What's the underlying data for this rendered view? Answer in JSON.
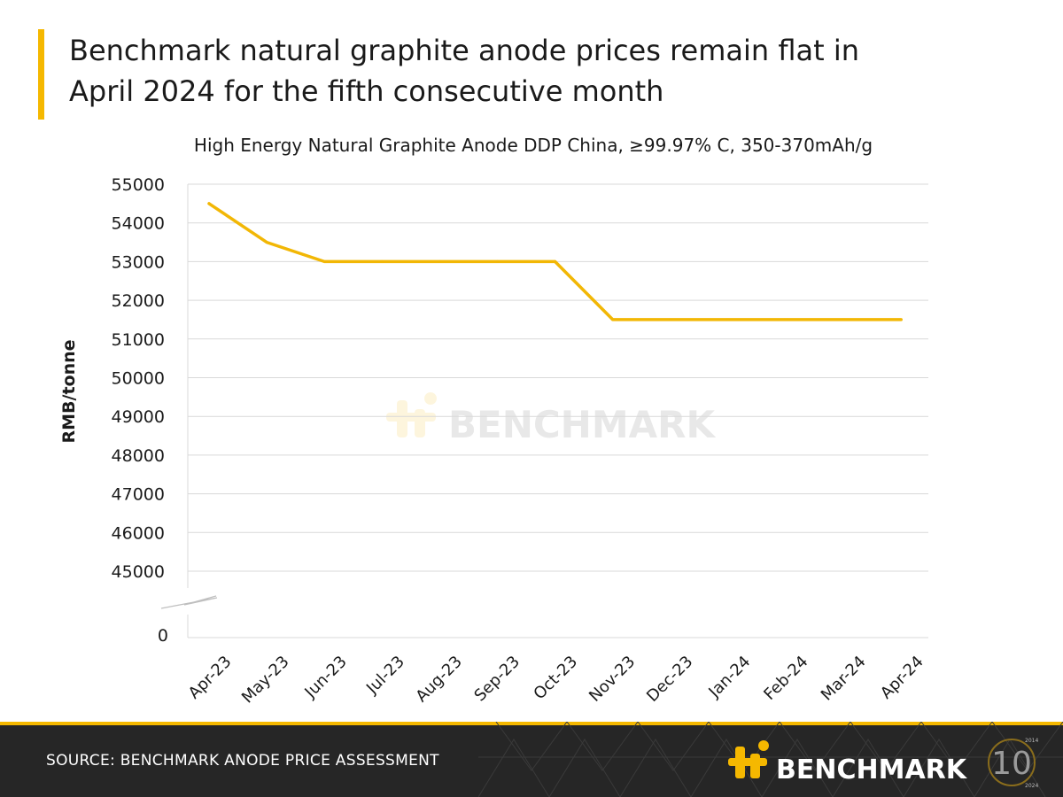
{
  "headline": {
    "line1": "Benchmark natural graphite anode prices remain flat in",
    "line2": "April 2024 for the fifth consecutive month"
  },
  "watermark": "BENCHMARK",
  "footer": {
    "source": "SOURCE: BENCHMARK ANODE PRICE ASSESSMENT",
    "brand": "BENCHMARK",
    "anniversary_number": "10",
    "anniversary_years": [
      "2014",
      "2024"
    ]
  },
  "colors": {
    "accent": "#F5B800",
    "line": "#F2B705",
    "footer_bg": "#262626",
    "grid": "#d9d9d9",
    "text": "#1a1a1a"
  },
  "chart_data": {
    "type": "line",
    "title": "High Energy Natural Graphite Anode DDP China, ≥99.97% C, 350-370mAh/g",
    "xlabel": "",
    "ylabel": "RMB/tonne",
    "categories": [
      "Apr-23",
      "May-23",
      "Jun-23",
      "Jul-23",
      "Aug-23",
      "Sep-23",
      "Oct-23",
      "Nov-23",
      "Dec-23",
      "Jan-24",
      "Feb-24",
      "Mar-24",
      "Apr-24"
    ],
    "series": [
      {
        "values": [
          54500,
          53500,
          53000,
          53000,
          53000,
          53000,
          53000,
          51500,
          51500,
          51500,
          51500,
          51500,
          51500
        ]
      }
    ],
    "yticks": [
      55000,
      54000,
      53000,
      52000,
      51000,
      50000,
      49000,
      48000,
      47000,
      46000,
      45000
    ],
    "y_zero_label": "0",
    "axis_break": true,
    "ylim": [
      45000,
      55000
    ],
    "grid": true,
    "legend": "none"
  }
}
